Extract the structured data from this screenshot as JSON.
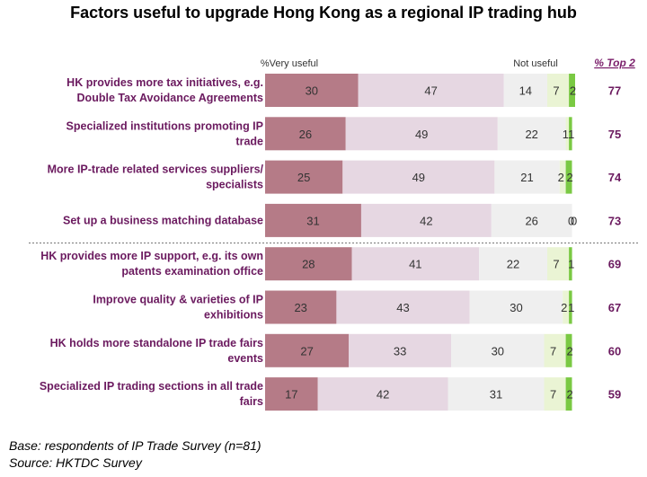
{
  "chart_data": {
    "type": "bar",
    "stacked": "horizontal",
    "title": "Factors useful to upgrade Hong Kong as a regional IP trading hub",
    "header_left": "%Very useful",
    "header_right": "Not useful",
    "top2_header": "% Top 2",
    "categories": [
      "HK provides more tax initiatives, e.g. Double Tax Avoidance Agreements",
      "Specialized institutions promoting IP trade",
      "More IP-trade related services suppliers/ specialists",
      "Set up a business matching database",
      "HK provides more IP support, e.g. its own patents examination office",
      "Improve quality & varieties of IP exhibitions",
      "HK holds more standalone IP trade fairs events",
      "Specialized IP trading sections in all trade fairs"
    ],
    "category_lines": [
      [
        "HK provides more tax initiatives, e.g.",
        "Double Tax Avoidance Agreements"
      ],
      [
        "Specialized institutions promoting IP",
        "trade"
      ],
      [
        "More IP-trade related services suppliers/",
        "specialists"
      ],
      [
        "Set up a business matching database"
      ],
      [
        "HK provides more IP support, e.g. its own",
        "patents examination office"
      ],
      [
        "Improve quality & varieties of IP",
        "exhibitions"
      ],
      [
        "HK holds more standalone IP trade fairs",
        "events"
      ],
      [
        "Specialized IP trading sections in all trade",
        "fairs"
      ]
    ],
    "series": [
      {
        "color": "#b57b87",
        "values": [
          30,
          26,
          25,
          31,
          28,
          23,
          27,
          17
        ]
      },
      {
        "color": "#e6d7e2",
        "values": [
          47,
          49,
          49,
          42,
          41,
          43,
          33,
          42
        ]
      },
      {
        "color": "#efefef",
        "values": [
          14,
          22,
          21,
          26,
          22,
          30,
          30,
          31
        ]
      },
      {
        "color": "#eaf4d4",
        "values": [
          7,
          1,
          2,
          0,
          7,
          2,
          7,
          7
        ]
      },
      {
        "color": "#7ac943",
        "values": [
          2,
          1,
          2,
          0,
          1,
          1,
          2,
          2
        ]
      }
    ],
    "top2": [
      77,
      75,
      74,
      73,
      69,
      67,
      60,
      59
    ],
    "divider_after_index": 3
  },
  "footnotes": {
    "base": "Base: respondents of IP Trade Survey (n=81)",
    "source": "Source: HKTDC Survey"
  }
}
